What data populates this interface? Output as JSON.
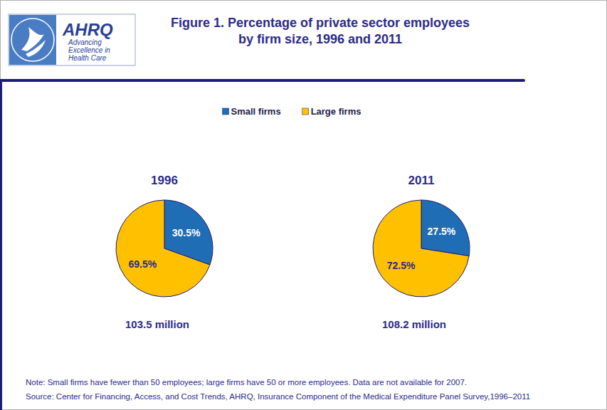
{
  "title": [
    "Figure 1. Percentage of private sector employees",
    "by firm size, 1996 and 2011"
  ],
  "logo": {
    "text": "AHRQ",
    "tagline": [
      "Advancing",
      "Excellence in",
      "Health Care"
    ]
  },
  "chart_data": [
    {
      "type": "pie",
      "title": "1996",
      "subtitle": "103.5 million",
      "categories": [
        "Small firms",
        "Large firms"
      ],
      "values": [
        30.5,
        69.5
      ],
      "value_labels": [
        "30.5%",
        "69.5%"
      ],
      "colors": [
        "#1f6db4",
        "#ffc000"
      ],
      "data_labels": true,
      "legend": "top"
    },
    {
      "type": "pie",
      "title": "2011",
      "subtitle": "108.2 million",
      "categories": [
        "Small firms",
        "Large firms"
      ],
      "values": [
        27.5,
        72.5
      ],
      "value_labels": [
        "27.5%",
        "72.5%"
      ],
      "colors": [
        "#1f6db4",
        "#ffc000"
      ],
      "data_labels": true
    }
  ],
  "note": "Note: Small firms have fewer than 50 employees; large firms have 50 or more employees. Data are not available for 2007.",
  "source": "Source: Center for Financing, Access, and Cost Trends, AHRQ, Insurance Component of the Medical Expenditure Panel Survey,1996–2011"
}
